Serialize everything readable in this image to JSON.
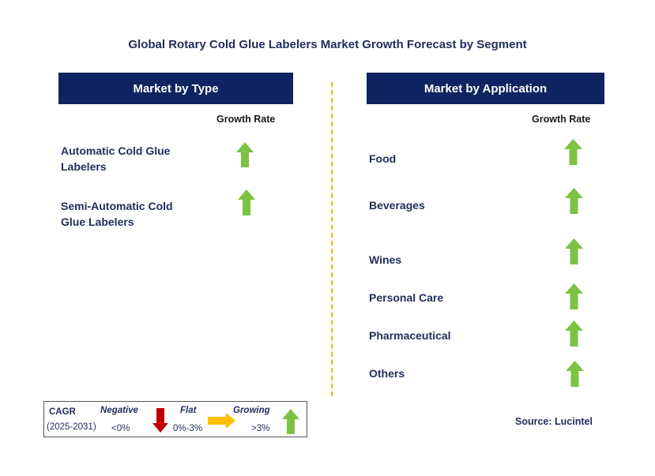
{
  "title": "Global Rotary Cold Glue Labelers Market Growth Forecast by Segment",
  "left_panel": {
    "header": "Market by Type",
    "growth_rate_label": "Growth Rate",
    "items": [
      {
        "line1": "Automatic Cold Glue",
        "line2": "Labelers",
        "trend": "growing"
      },
      {
        "line1": "Semi-Automatic Cold",
        "line2": "Glue Labelers",
        "trend": "growing"
      }
    ]
  },
  "right_panel": {
    "header": "Market by Application",
    "growth_rate_label": "Growth Rate",
    "items": [
      {
        "label": "Food",
        "trend": "growing"
      },
      {
        "label": "Beverages",
        "trend": "growing"
      },
      {
        "label": "Wines",
        "trend": "growing"
      },
      {
        "label": "Personal Care",
        "trend": "growing"
      },
      {
        "label": "Pharmaceutical",
        "trend": "growing"
      },
      {
        "label": "Others",
        "trend": "growing"
      }
    ]
  },
  "legend": {
    "cagr": "CAGR",
    "period": "(2025-2031)",
    "negative_label": "Negative",
    "negative_range": "<0%",
    "flat_label": "Flat",
    "flat_range": "0%-3%",
    "growing_label": "Growing",
    "growing_range": ">3%"
  },
  "source": "Source: Lucintel",
  "colors": {
    "header_bg": "#0f2460",
    "growing": "#7cc243",
    "negative": "#c00000",
    "flat": "#ffc000",
    "divider": "#f0b400"
  }
}
